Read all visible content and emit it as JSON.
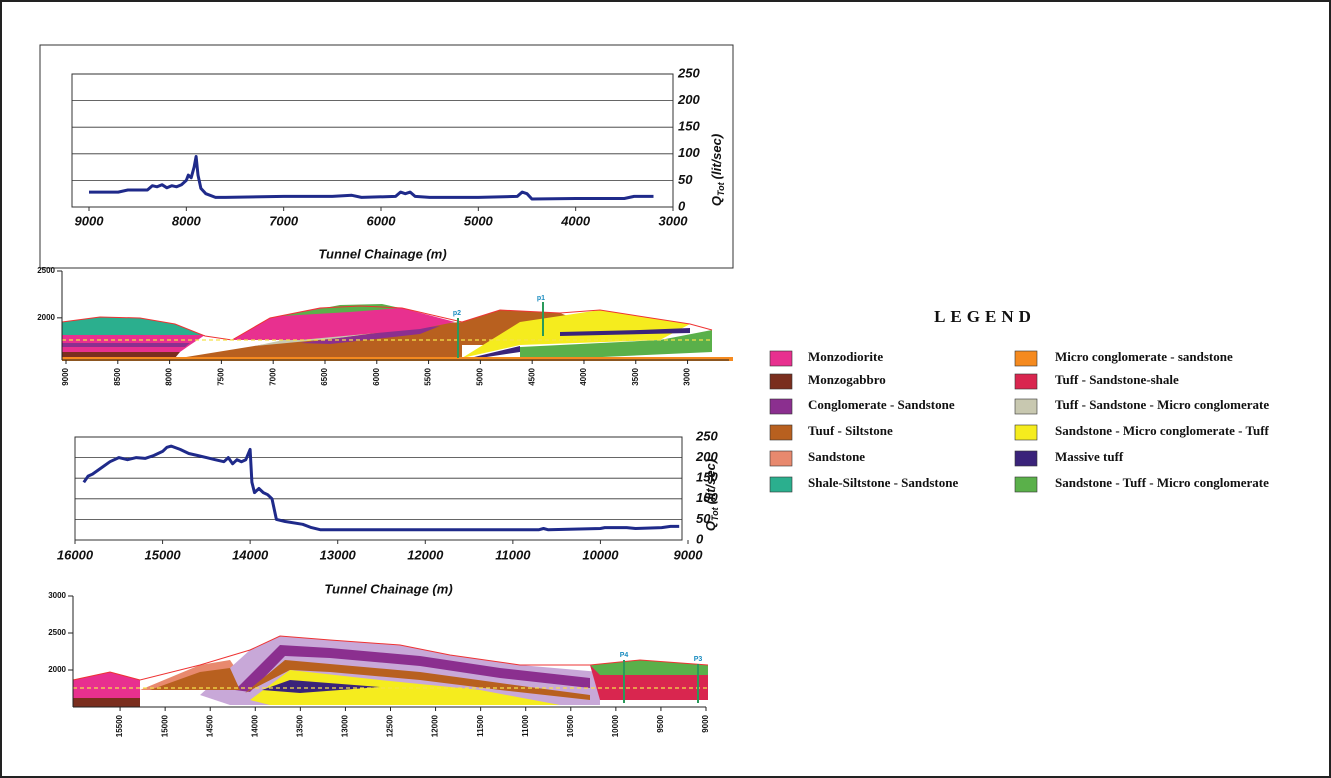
{
  "chart_data": [
    {
      "type": "line",
      "xlabel": "Tunnel Chainage (m)",
      "ylabel": {
        "main": "Q",
        "sub": "Tot",
        "unit": "(lit/sec)"
      },
      "color": "#1f2a8a",
      "grid": true,
      "xlim": [
        9000,
        3000
      ],
      "xticks": [
        9000,
        8000,
        7000,
        6000,
        5000,
        4000,
        3000
      ],
      "ylim": [
        0,
        250
      ],
      "yticks": [
        0,
        50,
        100,
        150,
        200,
        250
      ],
      "x": [
        9000,
        8700,
        8600,
        8400,
        8350,
        8300,
        8250,
        8200,
        8150,
        8100,
        8050,
        8000,
        7980,
        7950,
        7920,
        7900,
        7880,
        7850,
        7800,
        7700,
        7600,
        7000,
        6500,
        6300,
        6200,
        5850,
        5800,
        5750,
        5700,
        5650,
        5500,
        5000,
        4600,
        4550,
        4500,
        4450,
        4000,
        3500,
        3400,
        3200
      ],
      "values": [
        28,
        28,
        32,
        32,
        40,
        38,
        42,
        36,
        40,
        38,
        42,
        50,
        60,
        55,
        75,
        95,
        60,
        35,
        25,
        18,
        18,
        20,
        20,
        22,
        18,
        20,
        28,
        25,
        28,
        20,
        18,
        18,
        20,
        28,
        25,
        15,
        16,
        16,
        20,
        20
      ]
    },
    {
      "type": "section",
      "ylim": [
        1550,
        2500
      ],
      "yticks": [
        2000,
        2500
      ],
      "xlim": [
        9000,
        2600
      ],
      "xticks": [
        9000,
        8500,
        8000,
        7500,
        7000,
        6500,
        6000,
        5500,
        5000,
        4500,
        4000,
        3500,
        3000
      ],
      "annotations": [
        "p2",
        "p1"
      ]
    },
    {
      "type": "line",
      "xlabel": "Tunnel Chainage (m)",
      "ylabel": {
        "main": "Q",
        "sub": "Tot",
        "unit": "(lit/sec)"
      },
      "color": "#1f2a8a",
      "grid": true,
      "xlim": [
        16000,
        9000
      ],
      "xticks": [
        16000,
        15000,
        14000,
        13000,
        12000,
        11000,
        10000,
        9000
      ],
      "ylim": [
        0,
        250
      ],
      "yticks": [
        0,
        50,
        100,
        150,
        200,
        250
      ],
      "x": [
        15900,
        15850,
        15800,
        15700,
        15600,
        15500,
        15400,
        15300,
        15200,
        15100,
        15000,
        14950,
        14900,
        14800,
        14700,
        14600,
        14500,
        14400,
        14300,
        14250,
        14200,
        14150,
        14100,
        14050,
        14000,
        13980,
        13950,
        13900,
        13850,
        13800,
        13750,
        13700,
        13600,
        13400,
        13300,
        13200,
        12000,
        11000,
        10700,
        10650,
        10600,
        10000,
        9950,
        9700,
        9600,
        9300,
        9200,
        9100
      ],
      "values": [
        140,
        155,
        160,
        175,
        190,
        200,
        195,
        200,
        198,
        205,
        215,
        225,
        228,
        220,
        210,
        205,
        200,
        195,
        190,
        200,
        185,
        195,
        190,
        195,
        220,
        140,
        115,
        125,
        115,
        110,
        100,
        50,
        45,
        38,
        30,
        25,
        25,
        25,
        25,
        28,
        25,
        28,
        30,
        30,
        28,
        30,
        33,
        33
      ]
    },
    {
      "type": "section",
      "ylim": [
        1500,
        3000
      ],
      "yticks": [
        2000,
        2500,
        3000
      ],
      "xlim": [
        16000,
        9000
      ],
      "xticks": [
        15500,
        15000,
        14500,
        14000,
        13500,
        13000,
        12500,
        12000,
        11500,
        11000,
        10500,
        10000,
        9500,
        9000
      ],
      "annotations": [
        "P4",
        "P3"
      ]
    }
  ],
  "legend": {
    "title": "LEGEND",
    "items": [
      {
        "name": "Monzodiorite",
        "color": "#e8308f"
      },
      {
        "name": "Monzogabbro",
        "color": "#7a2e1e"
      },
      {
        "name": "Conglomerate - Sandstone",
        "color": "#8b2f8f"
      },
      {
        "name": "Tuuf - Siltstone",
        "color": "#b8601f"
      },
      {
        "name": "Sandstone",
        "color": "#e8896e"
      },
      {
        "name": "Shale-Siltstone - Sandstone",
        "color": "#2baf8e"
      },
      {
        "name": "Micro conglomerate - sandstone",
        "color": "#f58a1f"
      },
      {
        "name": "Tuff - Sandstone-shale",
        "color": "#d9264f"
      },
      {
        "name": "Tuff - Sandstone - Micro conglomerate",
        "color": "#c8c8b0"
      },
      {
        "name": "Sandstone - Micro conglomerate - Tuff",
        "color": "#f5ec1e"
      },
      {
        "name": "Massive tuff",
        "color": "#3a237a"
      },
      {
        "name": "Sandstone - Tuff - Micro conglomerate",
        "color": "#5ab04a"
      }
    ]
  }
}
